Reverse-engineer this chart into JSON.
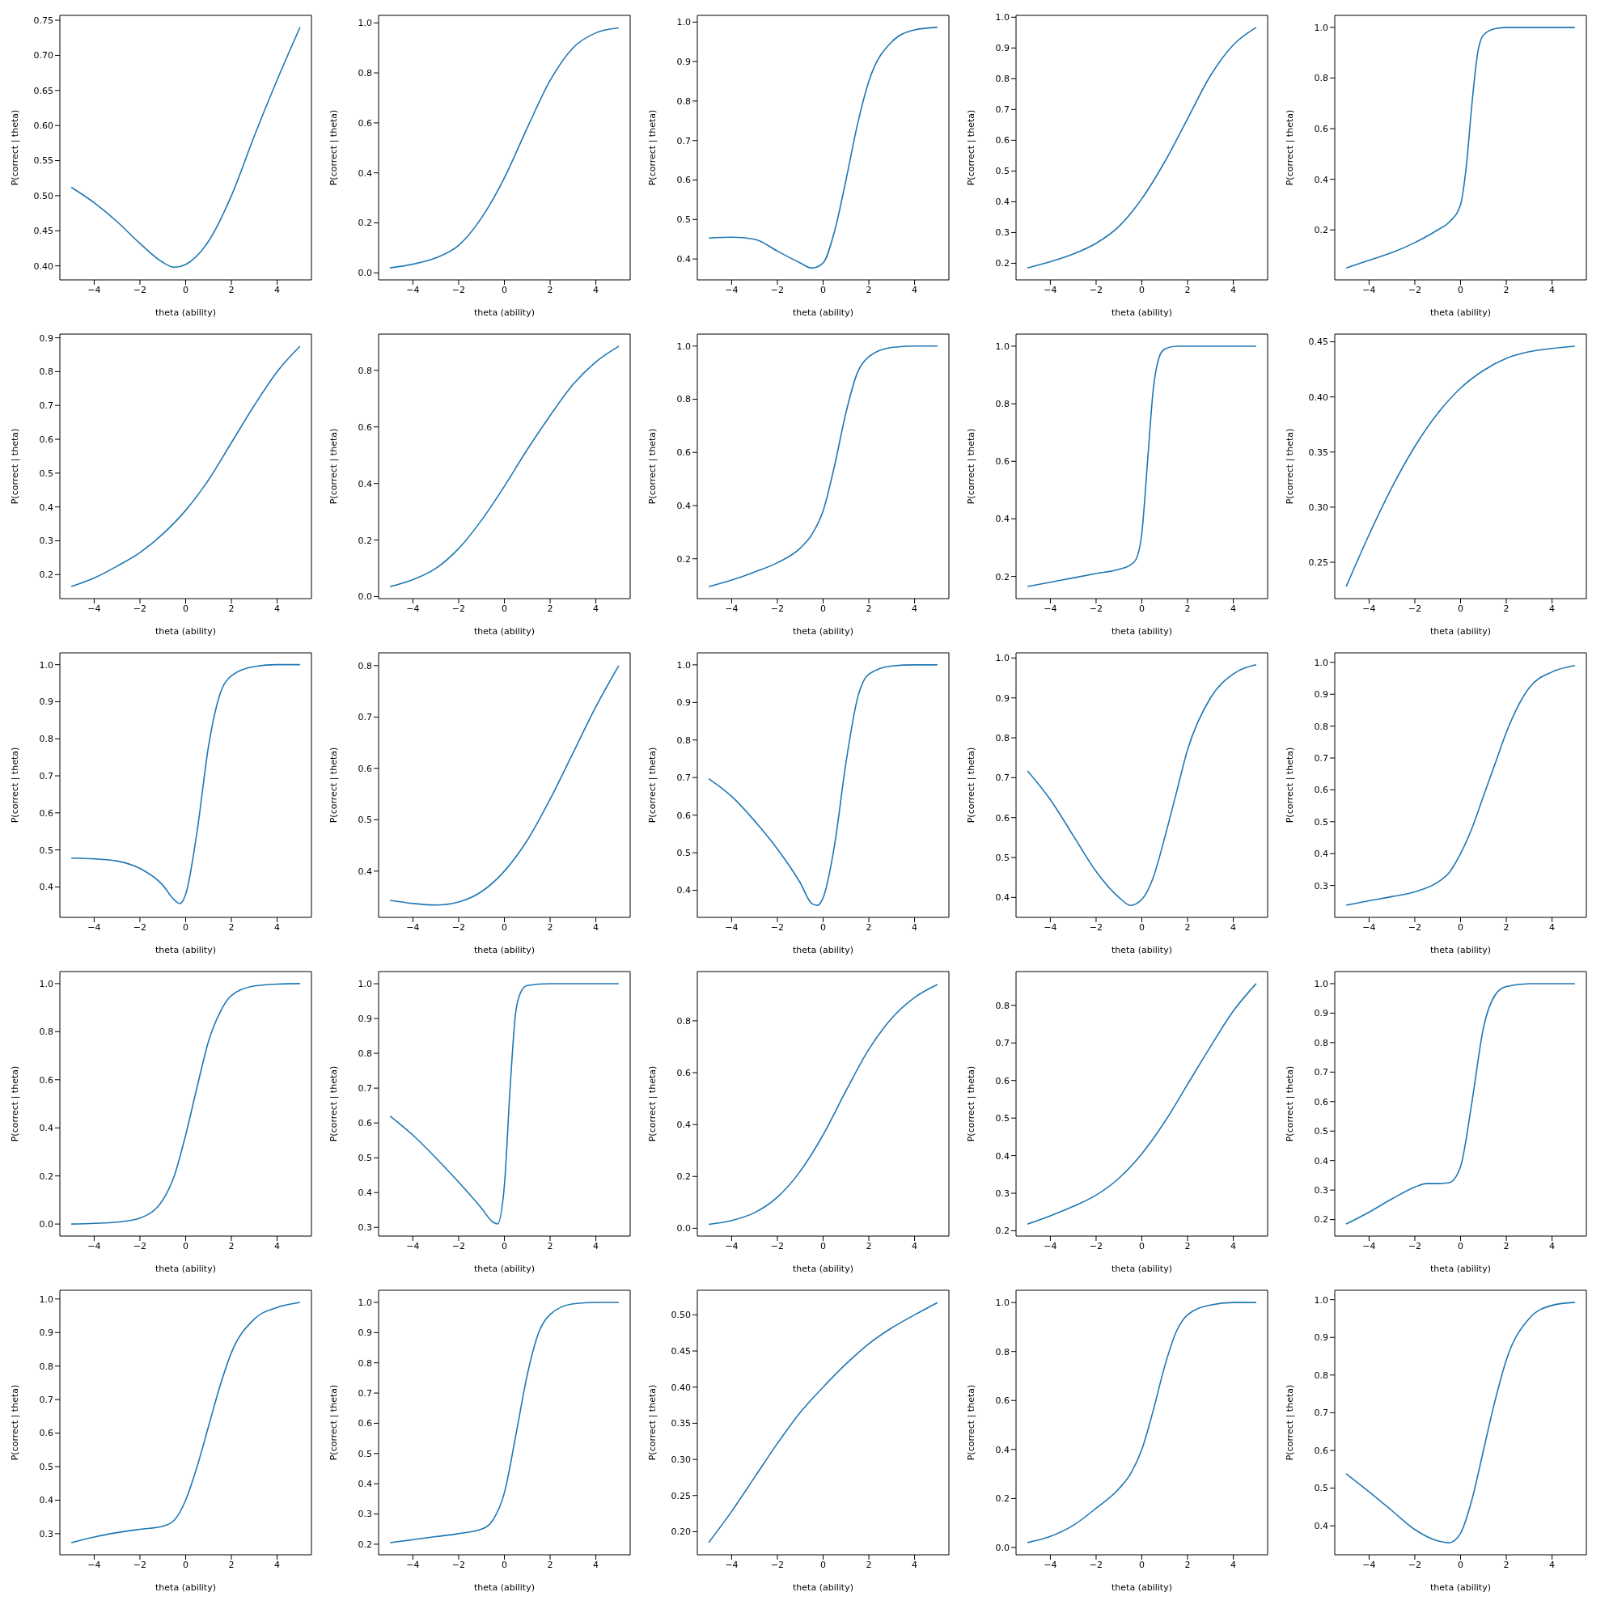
{
  "chart_data": [
    {
      "type": "line",
      "xlabel": "theta (ability)",
      "ylabel": "P(correct | theta)",
      "color": "#1f77b4",
      "x": [
        -5,
        -4,
        -3,
        -2,
        -1,
        -0.5,
        0,
        1,
        2,
        3,
        4,
        5
      ],
      "values": [
        0.512,
        0.49,
        0.463,
        0.432,
        0.405,
        0.398,
        0.402,
        0.435,
        0.5,
        0.585,
        0.665,
        0.74
      ],
      "xlim": [
        -5.5,
        5.5
      ],
      "xticks": [
        -4,
        -2,
        0,
        2,
        4
      ],
      "ylim": [
        0.38,
        0.757
      ],
      "yticks": [
        {
          "value": 0.4,
          "label": "0.40"
        },
        0.45,
        {
          "value": 0.5,
          "label": "0.50"
        },
        0.55,
        {
          "value": 0.6,
          "label": "0.60"
        },
        0.65,
        {
          "value": 0.7,
          "label": "0.70"
        },
        0.75
      ]
    },
    {
      "type": "line",
      "xlabel": "theta (ability)",
      "ylabel": "P(correct | theta)",
      "color": "#1f77b4",
      "x": [
        -5,
        -4,
        -3,
        -2,
        -1,
        0,
        1,
        2,
        3,
        4,
        5
      ],
      "values": [
        0.02,
        0.035,
        0.06,
        0.11,
        0.22,
        0.38,
        0.58,
        0.77,
        0.9,
        0.96,
        0.98
      ],
      "xlim": [
        -5.5,
        5.5
      ],
      "xticks": [
        -4,
        -2,
        0,
        2,
        4
      ],
      "ylim": [
        -0.028,
        1.03
      ],
      "yticks": [
        {
          "value": 0,
          "label": "0.0"
        },
        0.2,
        0.4,
        0.6,
        0.8,
        {
          "value": 1,
          "label": "1.0"
        }
      ]
    },
    {
      "type": "line",
      "xlabel": "theta (ability)",
      "ylabel": "P(correct | theta)",
      "color": "#1f77b4",
      "x": [
        -5,
        -4,
        -3,
        -2,
        -1,
        -0.5,
        0,
        0.5,
        1,
        1.5,
        2,
        3,
        4,
        5
      ],
      "values": [
        0.453,
        0.455,
        0.45,
        0.42,
        0.39,
        0.377,
        0.39,
        0.47,
        0.6,
        0.74,
        0.85,
        0.95,
        0.98,
        0.987
      ],
      "xlim": [
        -5.5,
        5.5
      ],
      "xticks": [
        -4,
        -2,
        0,
        2,
        4
      ],
      "ylim": [
        0.347,
        1.017
      ],
      "yticks": [
        0.4,
        0.5,
        0.6,
        0.7,
        0.8,
        0.9,
        {
          "value": 1,
          "label": "1.0"
        }
      ]
    },
    {
      "type": "line",
      "xlabel": "theta (ability)",
      "ylabel": "P(correct | theta)",
      "color": "#1f77b4",
      "x": [
        -5,
        -4,
        -3,
        -2,
        -1,
        0,
        1,
        2,
        3,
        4,
        5
      ],
      "values": [
        0.185,
        0.205,
        0.23,
        0.265,
        0.32,
        0.41,
        0.53,
        0.67,
        0.81,
        0.91,
        0.967
      ],
      "xlim": [
        -5.5,
        5.5
      ],
      "xticks": [
        -4,
        -2,
        0,
        2,
        4
      ],
      "ylim": [
        0.146,
        1.006
      ],
      "yticks": [
        0.2,
        0.3,
        0.4,
        0.5,
        0.6,
        0.7,
        0.8,
        0.9,
        {
          "value": 1,
          "label": "1.0"
        }
      ]
    },
    {
      "type": "line",
      "xlabel": "theta (ability)",
      "ylabel": "P(correct | theta)",
      "color": "#1f77b4",
      "x": [
        -5,
        -4,
        -3,
        -2,
        -1,
        -0.5,
        0,
        0.25,
        0.5,
        0.75,
        1,
        1.5,
        2,
        5
      ],
      "values": [
        0.05,
        0.08,
        0.11,
        0.15,
        0.2,
        0.23,
        0.3,
        0.45,
        0.7,
        0.9,
        0.97,
        0.995,
        1,
        1
      ],
      "xlim": [
        -5.5,
        5.5
      ],
      "xticks": [
        -4,
        -2,
        0,
        2,
        4
      ],
      "ylim": [
        0.0025,
        1.0475
      ],
      "yticks": [
        0.2,
        0.4,
        0.6,
        0.8,
        {
          "value": 1,
          "label": "1.0"
        }
      ]
    },
    {
      "type": "line",
      "xlabel": "theta (ability)",
      "ylabel": "P(correct | theta)",
      "color": "#1f77b4",
      "x": [
        -5,
        -4,
        -3,
        -2,
        -1,
        0,
        1,
        2,
        3,
        4,
        5
      ],
      "values": [
        0.165,
        0.19,
        0.225,
        0.265,
        0.32,
        0.39,
        0.48,
        0.59,
        0.7,
        0.8,
        0.875
      ],
      "xlim": [
        -5.5,
        5.5
      ],
      "xticks": [
        -4,
        -2,
        0,
        2,
        4
      ],
      "ylim": [
        0.129,
        0.911
      ],
      "yticks": [
        0.2,
        0.3,
        0.4,
        0.5,
        0.6,
        0.7,
        0.8,
        0.9
      ]
    },
    {
      "type": "line",
      "xlabel": "theta (ability)",
      "ylabel": "P(correct | theta)",
      "color": "#1f77b4",
      "x": [
        -5,
        -4,
        -3,
        -2,
        -1,
        0,
        1,
        2,
        3,
        4,
        5
      ],
      "values": [
        0.035,
        0.06,
        0.1,
        0.17,
        0.27,
        0.39,
        0.52,
        0.64,
        0.75,
        0.83,
        0.885
      ],
      "xlim": [
        -5.5,
        5.5
      ],
      "xticks": [
        -4,
        -2,
        0,
        2,
        4
      ],
      "ylim": [
        -0.007,
        0.928
      ],
      "yticks": [
        {
          "value": 0,
          "label": "0.0"
        },
        0.2,
        0.4,
        0.6,
        0.8
      ]
    },
    {
      "type": "line",
      "xlabel": "theta (ability)",
      "ylabel": "P(correct | theta)",
      "color": "#1f77b4",
      "x": [
        -5,
        -4,
        -3,
        -2,
        -1,
        -0.5,
        0,
        0.5,
        1,
        1.5,
        2,
        3,
        4,
        5
      ],
      "values": [
        0.095,
        0.12,
        0.15,
        0.185,
        0.24,
        0.29,
        0.38,
        0.55,
        0.75,
        0.9,
        0.96,
        0.995,
        1,
        1
      ],
      "xlim": [
        -5.5,
        5.5
      ],
      "xticks": [
        -4,
        -2,
        0,
        2,
        4
      ],
      "ylim": [
        0.05,
        1.045
      ],
      "yticks": [
        0.2,
        0.4,
        0.6,
        0.8,
        {
          "value": 1,
          "label": "1.0"
        }
      ]
    },
    {
      "type": "line",
      "xlabel": "theta (ability)",
      "ylabel": "P(correct | theta)",
      "color": "#1f77b4",
      "x": [
        -5,
        -4,
        -3,
        -2,
        -1,
        -0.5,
        -0.25,
        0,
        0.25,
        0.5,
        0.75,
        1,
        1.5,
        5
      ],
      "values": [
        0.165,
        0.18,
        0.195,
        0.21,
        0.225,
        0.24,
        0.26,
        0.35,
        0.6,
        0.85,
        0.96,
        0.99,
        1,
        1
      ],
      "xlim": [
        -5.5,
        5.5
      ],
      "xticks": [
        -4,
        -2,
        0,
        2,
        4
      ],
      "ylim": [
        0.123,
        1.042
      ],
      "yticks": [
        0.2,
        0.4,
        0.6,
        0.8,
        {
          "value": 1,
          "label": "1.0"
        }
      ]
    },
    {
      "type": "line",
      "xlabel": "theta (ability)",
      "ylabel": "P(correct | theta)",
      "color": "#1f77b4",
      "x": [
        -5,
        -4,
        -3,
        -2,
        -1,
        0,
        1,
        2,
        3,
        4,
        5
      ],
      "values": [
        0.228,
        0.275,
        0.318,
        0.355,
        0.385,
        0.408,
        0.424,
        0.435,
        0.441,
        0.444,
        0.446
      ],
      "xlim": [
        -5.5,
        5.5
      ],
      "xticks": [
        -4,
        -2,
        0,
        2,
        4
      ],
      "ylim": [
        0.217,
        0.457
      ],
      "yticks": [
        0.25,
        {
          "value": 0.3,
          "label": "0.30"
        },
        0.35,
        {
          "value": 0.4,
          "label": "0.40"
        },
        0.45
      ]
    },
    {
      "type": "line",
      "xlabel": "theta (ability)",
      "ylabel": "P(correct | theta)",
      "color": "#1f77b4",
      "x": [
        -5,
        -4,
        -3,
        -2,
        -1,
        -0.5,
        -0.25,
        0,
        0.5,
        1,
        1.5,
        2,
        3,
        4,
        5
      ],
      "values": [
        0.478,
        0.476,
        0.47,
        0.45,
        0.405,
        0.365,
        0.355,
        0.38,
        0.55,
        0.78,
        0.92,
        0.97,
        0.995,
        1,
        1
      ],
      "xlim": [
        -5.5,
        5.5
      ],
      "xticks": [
        -4,
        -2,
        0,
        2,
        4
      ],
      "ylim": [
        0.318,
        1.032
      ],
      "yticks": [
        0.4,
        0.5,
        0.6,
        0.7,
        0.8,
        0.9,
        {
          "value": 1,
          "label": "1.0"
        }
      ]
    },
    {
      "type": "line",
      "xlabel": "theta (ability)",
      "ylabel": "P(correct | theta)",
      "color": "#1f77b4",
      "x": [
        -5,
        -4,
        -3,
        -2,
        -1,
        0,
        1,
        2,
        3,
        4,
        5
      ],
      "values": [
        0.343,
        0.337,
        0.334,
        0.34,
        0.36,
        0.4,
        0.46,
        0.54,
        0.63,
        0.72,
        0.8
      ],
      "xlim": [
        -5.5,
        5.5
      ],
      "xticks": [
        -4,
        -2,
        0,
        2,
        4
      ],
      "ylim": [
        0.31,
        0.825
      ],
      "yticks": [
        0.4,
        0.5,
        0.6,
        0.7,
        0.8
      ]
    },
    {
      "type": "line",
      "xlabel": "theta (ability)",
      "ylabel": "P(correct | theta)",
      "color": "#1f77b4",
      "x": [
        -5,
        -4,
        -3,
        -2,
        -1,
        -0.5,
        -0.25,
        0,
        0.5,
        1,
        1.5,
        2,
        3,
        4,
        5
      ],
      "values": [
        0.697,
        0.65,
        0.585,
        0.51,
        0.42,
        0.365,
        0.36,
        0.38,
        0.52,
        0.74,
        0.91,
        0.975,
        0.997,
        1,
        1
      ],
      "xlim": [
        -5.5,
        5.5
      ],
      "xticks": [
        -4,
        -2,
        0,
        2,
        4
      ],
      "ylim": [
        0.328,
        1.032
      ],
      "yticks": [
        0.4,
        0.5,
        0.6,
        0.7,
        0.8,
        0.9,
        {
          "value": 1,
          "label": "1.0"
        }
      ]
    },
    {
      "type": "line",
      "xlabel": "theta (ability)",
      "ylabel": "P(correct | theta)",
      "color": "#1f77b4",
      "x": [
        -5,
        -4,
        -3,
        -2,
        -1,
        -0.5,
        0,
        0.5,
        1,
        1.5,
        2,
        3,
        4,
        5
      ],
      "values": [
        0.717,
        0.645,
        0.555,
        0.465,
        0.4,
        0.38,
        0.395,
        0.45,
        0.55,
        0.66,
        0.77,
        0.9,
        0.96,
        0.983
      ],
      "xlim": [
        -5.5,
        5.5
      ],
      "xticks": [
        -4,
        -2,
        0,
        2,
        4
      ],
      "ylim": [
        0.35,
        1.013
      ],
      "yticks": [
        0.4,
        0.5,
        0.6,
        0.7,
        0.8,
        0.9,
        {
          "value": 1,
          "label": "1.0"
        }
      ]
    },
    {
      "type": "line",
      "xlabel": "theta (ability)",
      "ylabel": "P(correct | theta)",
      "color": "#1f77b4",
      "x": [
        -5,
        -4,
        -3,
        -2,
        -1,
        -0.5,
        0,
        0.5,
        1,
        1.5,
        2,
        3,
        4,
        5
      ],
      "values": [
        0.238,
        0.252,
        0.265,
        0.28,
        0.31,
        0.34,
        0.4,
        0.48,
        0.58,
        0.68,
        0.78,
        0.92,
        0.97,
        0.99
      ],
      "xlim": [
        -5.5,
        5.5
      ],
      "xticks": [
        -4,
        -2,
        0,
        2,
        4
      ],
      "ylim": [
        0.2,
        1.03
      ],
      "yticks": [
        0.3,
        0.4,
        0.5,
        0.6,
        0.7,
        0.8,
        0.9,
        {
          "value": 1,
          "label": "1.0"
        }
      ]
    },
    {
      "type": "line",
      "xlabel": "theta (ability)",
      "ylabel": "P(correct | theta)",
      "color": "#1f77b4",
      "x": [
        -5,
        -4,
        -3,
        -2,
        -1,
        -0.5,
        0,
        0.5,
        1,
        1.5,
        2,
        3,
        4,
        5
      ],
      "values": [
        0,
        0.003,
        0.008,
        0.025,
        0.1,
        0.2,
        0.37,
        0.57,
        0.76,
        0.88,
        0.95,
        0.99,
        0.998,
        1
      ],
      "xlim": [
        -5.5,
        5.5
      ],
      "xticks": [
        -4,
        -2,
        0,
        2,
        4
      ],
      "ylim": [
        -0.05,
        1.05
      ],
      "yticks": [
        {
          "value": 0,
          "label": "0.0"
        },
        0.2,
        0.4,
        0.6,
        0.8,
        {
          "value": 1,
          "label": "1.0"
        }
      ]
    },
    {
      "type": "line",
      "xlabel": "theta (ability)",
      "ylabel": "P(correct | theta)",
      "color": "#1f77b4",
      "x": [
        -5,
        -4,
        -3,
        -2,
        -1,
        -0.5,
        -0.3,
        0,
        0.25,
        0.5,
        0.75,
        1,
        2,
        5
      ],
      "values": [
        0.62,
        0.565,
        0.5,
        0.43,
        0.355,
        0.315,
        0.31,
        0.42,
        0.7,
        0.92,
        0.98,
        0.995,
        1,
        1
      ],
      "xlim": [
        -5.5,
        5.5
      ],
      "xticks": [
        -4,
        -2,
        0,
        2,
        4
      ],
      "ylim": [
        0.275,
        1.035
      ],
      "yticks": [
        0.3,
        0.4,
        0.5,
        0.6,
        0.7,
        0.8,
        0.9,
        {
          "value": 1,
          "label": "1.0"
        }
      ]
    },
    {
      "type": "line",
      "xlabel": "theta (ability)",
      "ylabel": "P(correct | theta)",
      "color": "#1f77b4",
      "x": [
        -5,
        -4,
        -3,
        -2,
        -1,
        0,
        1,
        2,
        3,
        4,
        5
      ],
      "values": [
        0.015,
        0.03,
        0.06,
        0.12,
        0.22,
        0.36,
        0.53,
        0.69,
        0.81,
        0.89,
        0.94
      ],
      "xlim": [
        -5.5,
        5.5
      ],
      "xticks": [
        -4,
        -2,
        0,
        2,
        4
      ],
      "ylim": [
        -0.03,
        0.99
      ],
      "yticks": [
        {
          "value": 0,
          "label": "0.0"
        },
        0.2,
        0.4,
        0.6,
        0.8
      ]
    },
    {
      "type": "line",
      "xlabel": "theta (ability)",
      "ylabel": "P(correct | theta)",
      "color": "#1f77b4",
      "x": [
        -5,
        -4,
        -3,
        -2,
        -1,
        0,
        1,
        2,
        3,
        4,
        5
      ],
      "values": [
        0.218,
        0.24,
        0.265,
        0.295,
        0.34,
        0.405,
        0.49,
        0.59,
        0.69,
        0.785,
        0.858
      ],
      "xlim": [
        -5.5,
        5.5
      ],
      "xticks": [
        -4,
        -2,
        0,
        2,
        4
      ],
      "ylim": [
        0.186,
        0.89
      ],
      "yticks": [
        0.2,
        0.3,
        0.4,
        0.5,
        0.6,
        0.7,
        0.8
      ]
    },
    {
      "type": "line",
      "xlabel": "theta (ability)",
      "ylabel": "P(correct | theta)",
      "color": "#1f77b4",
      "x": [
        -5,
        -4,
        -3,
        -2,
        -1.5,
        -1,
        -0.5,
        0,
        0.5,
        1,
        1.5,
        2,
        3,
        5
      ],
      "values": [
        0.185,
        0.225,
        0.27,
        0.31,
        0.322,
        0.322,
        0.325,
        0.38,
        0.6,
        0.85,
        0.96,
        0.99,
        1,
        1
      ],
      "xlim": [
        -5.5,
        5.5
      ],
      "xticks": [
        -4,
        -2,
        0,
        2,
        4
      ],
      "ylim": [
        0.144,
        1.041
      ],
      "yticks": [
        0.2,
        0.3,
        0.4,
        0.5,
        0.6,
        0.7,
        0.8,
        0.9,
        {
          "value": 1,
          "label": "1.0"
        }
      ]
    },
    {
      "type": "line",
      "xlabel": "theta (ability)",
      "ylabel": "P(correct | theta)",
      "color": "#1f77b4",
      "x": [
        -5,
        -4,
        -3,
        -2,
        -1,
        -0.5,
        0,
        0.5,
        1,
        1.5,
        2,
        3,
        4,
        5
      ],
      "values": [
        0.273,
        0.29,
        0.303,
        0.313,
        0.322,
        0.34,
        0.4,
        0.5,
        0.62,
        0.74,
        0.84,
        0.94,
        0.975,
        0.99
      ],
      "xlim": [
        -5.5,
        5.5
      ],
      "xticks": [
        -4,
        -2,
        0,
        2,
        4
      ],
      "ylim": [
        0.237,
        1.026
      ],
      "yticks": [
        0.3,
        0.4,
        0.5,
        0.6,
        0.7,
        0.8,
        0.9,
        {
          "value": 1,
          "label": "1.0"
        }
      ]
    },
    {
      "type": "line",
      "xlabel": "theta (ability)",
      "ylabel": "P(correct | theta)",
      "color": "#1f77b4",
      "x": [
        -5,
        -4,
        -3,
        -2,
        -1,
        -0.5,
        0,
        0.5,
        1,
        1.5,
        2,
        3,
        4,
        5
      ],
      "values": [
        0.205,
        0.215,
        0.225,
        0.235,
        0.25,
        0.28,
        0.37,
        0.56,
        0.76,
        0.9,
        0.96,
        0.995,
        1,
        1
      ],
      "xlim": [
        -5.5,
        5.5
      ],
      "xticks": [
        -4,
        -2,
        0,
        2,
        4
      ],
      "ylim": [
        0.165,
        1.04
      ],
      "yticks": [
        0.2,
        0.3,
        0.4,
        0.5,
        0.6,
        0.7,
        0.8,
        0.9,
        {
          "value": 1,
          "label": "1.0"
        }
      ]
    },
    {
      "type": "line",
      "xlabel": "theta (ability)",
      "ylabel": "P(correct | theta)",
      "color": "#1f77b4",
      "x": [
        -5,
        -4,
        -3,
        -2,
        -1,
        0,
        1,
        2,
        3,
        4,
        5
      ],
      "values": [
        0.185,
        0.228,
        0.275,
        0.322,
        0.365,
        0.4,
        0.432,
        0.46,
        0.482,
        0.5,
        0.517
      ],
      "xlim": [
        -5.5,
        5.5
      ],
      "xticks": [
        -4,
        -2,
        0,
        2,
        4
      ],
      "ylim": [
        0.168,
        0.534
      ],
      "yticks": [
        {
          "value": 0.2,
          "label": "0.20"
        },
        0.25,
        {
          "value": 0.3,
          "label": "0.30"
        },
        0.35,
        {
          "value": 0.4,
          "label": "0.40"
        },
        0.45,
        {
          "value": 0.5,
          "label": "0.50"
        }
      ]
    },
    {
      "type": "line",
      "xlabel": "theta (ability)",
      "ylabel": "P(correct | theta)",
      "color": "#1f77b4",
      "x": [
        -5,
        -4,
        -3,
        -2,
        -1,
        -0.5,
        0,
        0.5,
        1,
        1.5,
        2,
        3,
        4,
        5
      ],
      "values": [
        0.02,
        0.045,
        0.09,
        0.16,
        0.24,
        0.3,
        0.4,
        0.56,
        0.74,
        0.88,
        0.95,
        0.99,
        1,
        1
      ],
      "xlim": [
        -5.5,
        5.5
      ],
      "xticks": [
        -4,
        -2,
        0,
        2,
        4
      ],
      "ylim": [
        -0.03,
        1.05
      ],
      "yticks": [
        {
          "value": 0,
          "label": "0.0"
        },
        0.2,
        0.4,
        0.6,
        0.8,
        {
          "value": 1,
          "label": "1.0"
        }
      ]
    },
    {
      "type": "line",
      "xlabel": "theta (ability)",
      "ylabel": "P(correct | theta)",
      "color": "#1f77b4",
      "x": [
        -5,
        -4,
        -3,
        -2,
        -1,
        -0.5,
        0,
        0.5,
        1,
        1.5,
        2,
        3,
        4,
        5
      ],
      "values": [
        0.538,
        0.49,
        0.44,
        0.39,
        0.36,
        0.355,
        0.38,
        0.47,
        0.6,
        0.73,
        0.84,
        0.95,
        0.985,
        0.993
      ],
      "xlim": [
        -5.5,
        5.5
      ],
      "xticks": [
        -4,
        -2,
        0,
        2,
        4
      ],
      "ylim": [
        0.323,
        1.025
      ],
      "yticks": [
        0.4,
        0.5,
        0.6,
        0.7,
        0.8,
        0.9,
        {
          "value": 1,
          "label": "1.0"
        }
      ]
    }
  ]
}
